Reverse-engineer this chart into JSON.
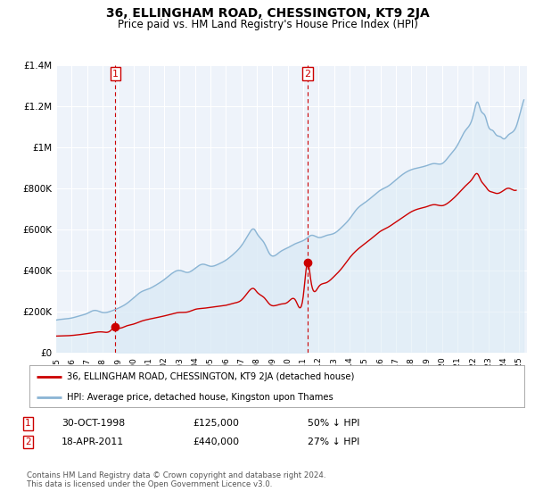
{
  "title": "36, ELLINGHAM ROAD, CHESSINGTON, KT9 2JA",
  "subtitle": "Price paid vs. HM Land Registry's House Price Index (HPI)",
  "hpi_color": "#8ab4d4",
  "hpi_fill_color": "#daeaf5",
  "price_color": "#cc0000",
  "vline_color": "#cc0000",
  "background_color": "#ffffff",
  "plot_bg_color": "#eef3fa",
  "grid_color": "#ffffff",
  "ylim": [
    0,
    1400000
  ],
  "yticks": [
    0,
    200000,
    400000,
    600000,
    800000,
    1000000,
    1200000,
    1400000
  ],
  "ytick_labels": [
    "£0",
    "£200K",
    "£400K",
    "£600K",
    "£800K",
    "£1M",
    "£1.2M",
    "£1.4M"
  ],
  "xlim_start": 1995.2,
  "xlim_end": 2025.5,
  "xtick_years": [
    1995,
    1996,
    1997,
    1998,
    1999,
    2000,
    2001,
    2002,
    2003,
    2004,
    2005,
    2006,
    2007,
    2008,
    2009,
    2010,
    2011,
    2012,
    2013,
    2014,
    2015,
    2016,
    2017,
    2018,
    2019,
    2020,
    2021,
    2022,
    2023,
    2024,
    2025
  ],
  "sale1_year": 1998.83,
  "sale1_price": 125000,
  "sale1_label": "1",
  "sale2_year": 2011.3,
  "sale2_price": 440000,
  "sale2_label": "2",
  "legend_line1": "36, ELLINGHAM ROAD, CHESSINGTON, KT9 2JA (detached house)",
  "legend_line2": "HPI: Average price, detached house, Kingston upon Thames",
  "table_row1_num": "1",
  "table_row1_date": "30-OCT-1998",
  "table_row1_price": "£125,000",
  "table_row1_hpi": "50% ↓ HPI",
  "table_row2_num": "2",
  "table_row2_date": "18-APR-2011",
  "table_row2_price": "£440,000",
  "table_row2_hpi": "27% ↓ HPI",
  "footer": "Contains HM Land Registry data © Crown copyright and database right 2024.\nThis data is licensed under the Open Government Licence v3.0."
}
